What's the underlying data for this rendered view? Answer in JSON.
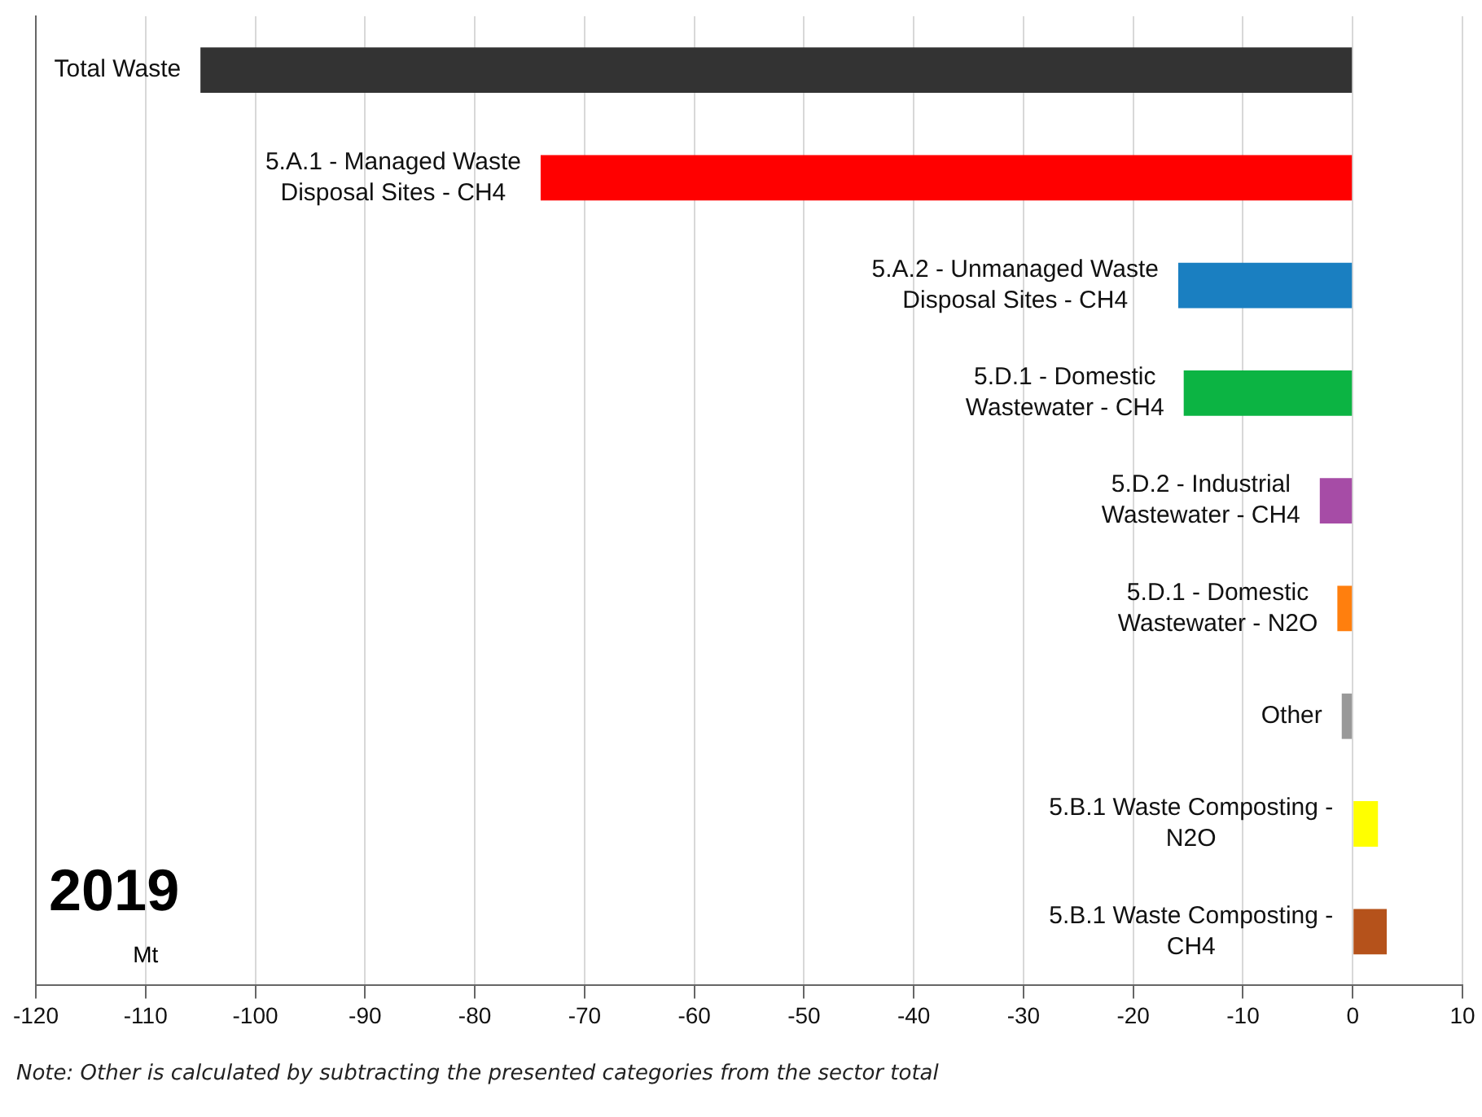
{
  "chart_data": {
    "type": "bar",
    "orientation": "horizontal",
    "categories": [
      "Total Waste",
      "5.A.1 - Managed Waste Disposal Sites - CH4",
      "5.A.2 - Unmanaged Waste Disposal Sites - CH4",
      "5.D.1 - Domestic Wastewater - CH4",
      "5.D.2 - Industrial Wastewater - CH4",
      "5.D.1 - Domestic Wastewater - N2O",
      "Other",
      "5.B.1 Waste Composting - N2O",
      "5.B.1 Waste Composting - CH4"
    ],
    "values": [
      -105,
      -74,
      -15.9,
      -15.4,
      -3,
      -1.4,
      -1,
      2.3,
      3.1
    ],
    "colors": [
      "#333333",
      "#ff0000",
      "#1a7fc1",
      "#0cb443",
      "#a64ca6",
      "#ff7f0e",
      "#999999",
      "#ffff00",
      "#b5521b"
    ],
    "xlim": [
      -120,
      10
    ],
    "xticks": [
      -120,
      -110,
      -100,
      -90,
      -80,
      -70,
      -60,
      -50,
      -40,
      -30,
      -20,
      -10,
      0,
      10
    ],
    "grid": "x",
    "legend": false,
    "tick_labels": "x",
    "annotations": [
      "2019",
      "Mt",
      "Note: Other is calculated by subtracting the presented categories from the sector total"
    ]
  }
}
